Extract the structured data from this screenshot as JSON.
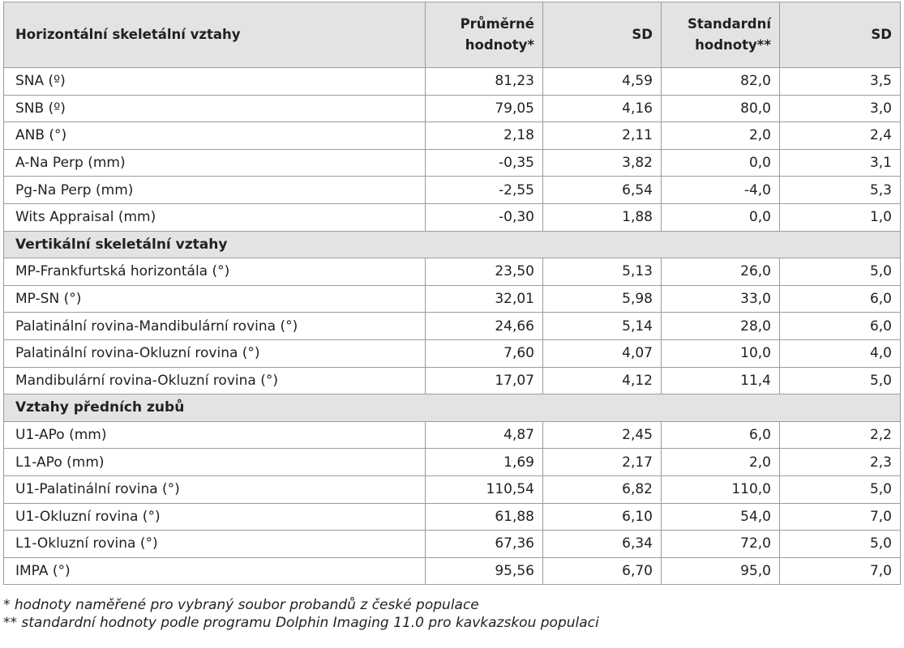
{
  "header": {
    "label": "Horizontální skeletální vztahy",
    "mean_line1": "Průměrné",
    "mean_line2": "hodnoty*",
    "sd1": "SD",
    "std_line1": "Standardní",
    "std_line2": "hodnoty**",
    "sd2": "SD"
  },
  "rows": [
    {
      "type": "data",
      "label": "SNA (º)",
      "mean": "81,23",
      "sd1": "4,59",
      "std": "82,0",
      "sd2": "3,5"
    },
    {
      "type": "data",
      "label": "SNB (º)",
      "mean": "79,05",
      "sd1": "4,16",
      "std": "80,0",
      "sd2": "3,0"
    },
    {
      "type": "data",
      "label": "ANB (°)",
      "mean": "2,18",
      "sd1": "2,11",
      "std": "2,0",
      "sd2": "2,4"
    },
    {
      "type": "data",
      "label": "A-Na Perp (mm)",
      "mean": "-0,35",
      "sd1": "3,82",
      "std": "0,0",
      "sd2": "3,1"
    },
    {
      "type": "data",
      "label": "Pg-Na Perp (mm)",
      "mean": "-2,55",
      "sd1": "6,54",
      "std": "-4,0",
      "sd2": "5,3"
    },
    {
      "type": "data",
      "label": "Wits Appraisal (mm)",
      "mean": "-0,30",
      "sd1": "1,88",
      "std": "0,0",
      "sd2": "1,0"
    },
    {
      "type": "section",
      "label": "Vertikální skeletální vztahy"
    },
    {
      "type": "data",
      "label": "MP-Frankfurtská horizontála (°)",
      "mean": "23,50",
      "sd1": "5,13",
      "std": "26,0",
      "sd2": "5,0"
    },
    {
      "type": "data",
      "label": "MP-SN (°)",
      "mean": "32,01",
      "sd1": "5,98",
      "std": "33,0",
      "sd2": "6,0"
    },
    {
      "type": "data",
      "label": "Palatinální rovina-Mandibulární rovina (°)",
      "mean": "24,66",
      "sd1": "5,14",
      "std": "28,0",
      "sd2": "6,0"
    },
    {
      "type": "data",
      "label": "Palatinální rovina-Okluzní rovina (°)",
      "mean": "7,60",
      "sd1": "4,07",
      "std": "10,0",
      "sd2": "4,0"
    },
    {
      "type": "data",
      "label": "Mandibulární rovina-Okluzní rovina (°)",
      "mean": "17,07",
      "sd1": "4,12",
      "std": "11,4",
      "sd2": "5,0"
    },
    {
      "type": "section",
      "label": "Vztahy předních zubů"
    },
    {
      "type": "data",
      "label": "U1-APo (mm)",
      "mean": "4,87",
      "sd1": "2,45",
      "std": "6,0",
      "sd2": "2,2"
    },
    {
      "type": "data",
      "label": "L1-APo (mm)",
      "mean": "1,69",
      "sd1": "2,17",
      "std": "2,0",
      "sd2": "2,3"
    },
    {
      "type": "data",
      "label": "U1-Palatinální rovina (°)",
      "mean": "110,54",
      "sd1": "6,82",
      "std": "110,0",
      "sd2": "5,0"
    },
    {
      "type": "data",
      "label": "U1-Okluzní rovina (°)",
      "mean": "61,88",
      "sd1": "6,10",
      "std": "54,0",
      "sd2": "7,0"
    },
    {
      "type": "data",
      "label": "L1-Okluzní rovina (°)",
      "mean": "67,36",
      "sd1": "6,34",
      "std": "72,0",
      "sd2": "5,0"
    },
    {
      "type": "data",
      "label": "IMPA (°)",
      "mean": "95,56",
      "sd1": "6,70",
      "std": "95,0",
      "sd2": "7,0"
    }
  ],
  "footnotes": {
    "note1": "* hodnoty naměřené pro vybraný soubor probandů z české populace",
    "note2": "** standardní hodnoty podle programu Dolphin Imaging 11.0 pro kavkazskou populaci"
  },
  "colors": {
    "header_bg": "#e3e3e3",
    "border": "#9c9c9c",
    "text": "#231f20"
  }
}
